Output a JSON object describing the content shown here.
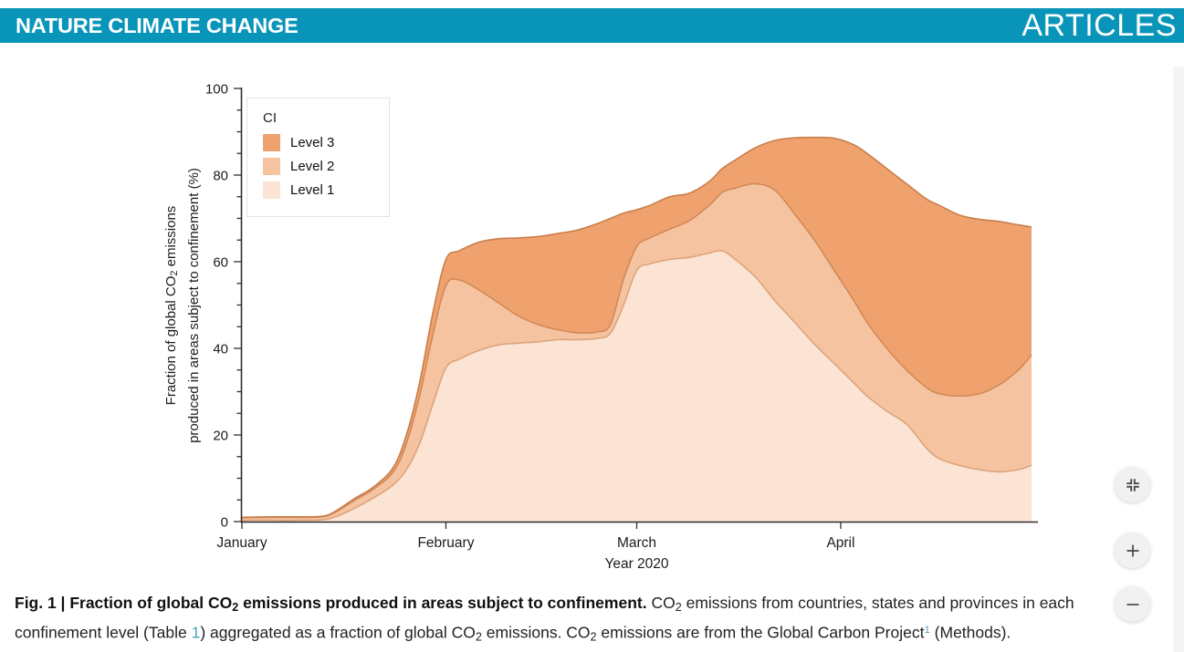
{
  "header": {
    "journal": "NATURE CLIMATE CHANGE",
    "section": "ARTICLES",
    "bar_color": "#0995ba"
  },
  "chart_data": {
    "type": "area",
    "stacked": true,
    "xlabel": "Year 2020",
    "ylabel": "Fraction of global CO2 emissions produced in areas subject to confinement (%)",
    "ylabel_lines": [
      [
        {
          "t": "Fraction of global CO"
        },
        {
          "t": "2",
          "sub": 1
        },
        {
          "t": " emissions"
        }
      ],
      [
        {
          "t": "produced in areas subject to confinement (%)"
        }
      ]
    ],
    "ylim": [
      0,
      100
    ],
    "yticks": [
      0,
      20,
      40,
      60,
      80,
      100
    ],
    "y_minor_step": 5,
    "axis_color": "#2e2e2e",
    "x_months": [
      {
        "label": "January",
        "day": 0
      },
      {
        "label": "February",
        "day": 31
      },
      {
        "label": "March",
        "day": 60
      },
      {
        "label": "April",
        "day": 91
      }
    ],
    "x_days": [
      0,
      4,
      8,
      12,
      14,
      17,
      20,
      23,
      25,
      27,
      29,
      31,
      33,
      36,
      39,
      42,
      45,
      48,
      51,
      54,
      56,
      58,
      60,
      62,
      65,
      68,
      71,
      73,
      75,
      78,
      81,
      84,
      87,
      90,
      93,
      95,
      98,
      101,
      104,
      106,
      109,
      112,
      115,
      118,
      120
    ],
    "series": [
      {
        "name": "Level 1",
        "fill": "#fbe4d3",
        "line": "#dca47c",
        "values": [
          0.3,
          0.3,
          0.3,
          0.4,
          1.0,
          3.0,
          5.5,
          8.5,
          12,
          18,
          27,
          35.5,
          37.5,
          39.5,
          40.8,
          41.2,
          41.5,
          42,
          42,
          42.3,
          43.5,
          50,
          58,
          59.5,
          60.5,
          61,
          62,
          62.5,
          60.5,
          56.5,
          51,
          46,
          41,
          36.5,
          32,
          29,
          25.5,
          22.5,
          17,
          14.5,
          13,
          12,
          11.5,
          12,
          13
        ]
      },
      {
        "name": "Level 2",
        "fill": "#f6c3a0",
        "line": "#d08a58",
        "values": [
          0.6,
          0.7,
          0.7,
          0.7,
          1.0,
          1.8,
          2.0,
          3.0,
          6,
          11,
          16,
          19,
          18.3,
          14,
          9.7,
          6.3,
          4,
          2.3,
          1.6,
          1.5,
          2,
          6,
          5.5,
          6,
          7,
          8.5,
          11,
          13.5,
          16.5,
          21.5,
          25.5,
          25,
          24,
          21.5,
          19,
          17,
          14.5,
          12.5,
          14,
          15,
          16,
          17.5,
          20,
          23,
          25.5
        ]
      },
      {
        "name": "Level 3",
        "fill": "#efa26e",
        "line": "#c97e4b",
        "values": [
          0.1,
          0.1,
          0.1,
          0.1,
          0.2,
          0.4,
          0.5,
          1.0,
          2,
          3,
          5,
          6,
          6.7,
          11,
          14.8,
          18,
          20.3,
          22.2,
          23.7,
          25,
          24.5,
          15.2,
          8.5,
          7.5,
          7.5,
          6.3,
          5.5,
          5.5,
          6.5,
          8.3,
          11.5,
          17.6,
          23.7,
          30.5,
          36,
          39,
          41.5,
          43,
          43.5,
          43.5,
          41.8,
          40.3,
          37.8,
          33.5,
          29.5
        ]
      }
    ],
    "legend": {
      "title": "CI",
      "entries": [
        {
          "label": "Level 3",
          "color": "#efa26e"
        },
        {
          "label": "Level 2",
          "color": "#f6c3a0"
        },
        {
          "label": "Level 1",
          "color": "#fbe4d3"
        }
      ]
    }
  },
  "caption": {
    "line1": [
      {
        "t": "Fig. 1 | Fraction of global CO",
        "b": 1
      },
      {
        "t": "2",
        "b": 1,
        "sub": 1
      },
      {
        "t": " emissions produced in areas subject to confinement. ",
        "b": 1
      },
      {
        "t": "CO"
      },
      {
        "t": "2",
        "sub": 1
      },
      {
        "t": " emissions from countries, states and provinces in each"
      }
    ],
    "line2": [
      {
        "t": "confinement level (Table "
      },
      {
        "t": "1",
        "link": 1
      },
      {
        "t": ") aggregated as a fraction of global CO"
      },
      {
        "t": "2",
        "sub": 1
      },
      {
        "t": " emissions. CO"
      },
      {
        "t": "2",
        "sub": 1
      },
      {
        "t": " emissions are from the Global Carbon Project"
      },
      {
        "t": "1",
        "link": 1,
        "sup": 1
      },
      {
        "t": " (Methods)."
      }
    ],
    "link_color": "#4aa3ba"
  }
}
